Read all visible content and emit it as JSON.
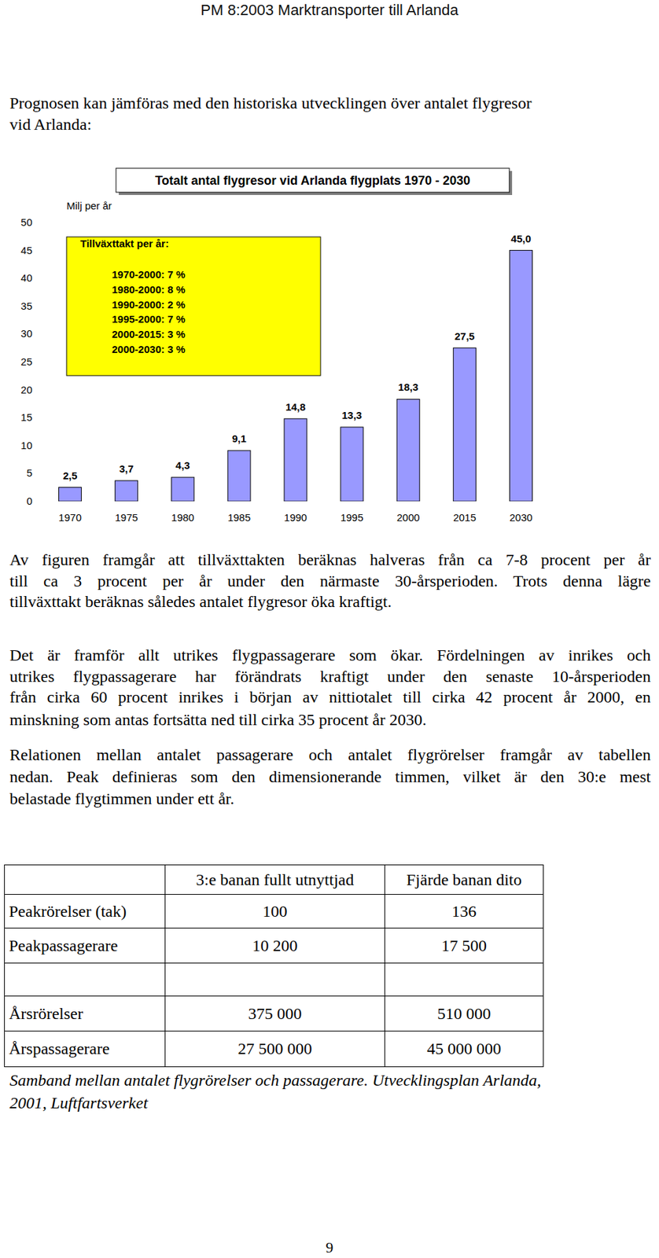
{
  "header": {
    "title": "PM 8:2003 Marktransporter till Arlanda"
  },
  "intro": [
    "Prognosen kan jämföras med den historiska utvecklingen över antalet flygresor",
    "vid Arlanda:"
  ],
  "chart_data": {
    "type": "bar",
    "title": "Totalt antal flygresor vid Arlanda flygplats 1970 - 2030",
    "y_label": "Milj per år",
    "categories": [
      "1970",
      "1975",
      "1980",
      "1985",
      "1990",
      "1995",
      "2000",
      "2015",
      "2030"
    ],
    "values": [
      2.5,
      3.7,
      4.3,
      9.1,
      14.8,
      13.3,
      18.3,
      27.5,
      45.0
    ],
    "value_labels": [
      "2,5",
      "3,7",
      "4,3",
      "9,1",
      "14,8",
      "13,3",
      "18,3",
      "27,5",
      "45,0"
    ],
    "color": "#9999ff",
    "data_labels": true,
    "ylim": [
      0,
      50
    ],
    "yticks": [
      0,
      5,
      10,
      15,
      20,
      25,
      30,
      35,
      40,
      45,
      50
    ],
    "annotation": {
      "title": "Tillväxttakt per år:",
      "lines": [
        "1970-2000: 7 %",
        "1980-2000: 8 %",
        "1990-2000: 2 %",
        "1995-2000: 7 %",
        "2000-2015: 3 %",
        "2000-2030: 3 %"
      ]
    }
  },
  "paragraphs": [
    {
      "lines": [
        "Av figuren framgår att tillväxttakten beräknas halveras från ca 7-8 procent per år",
        "till ca 3 procent per år under den närmaste 30-årsperioden. Trots denna lägre",
        "tillväxttakt beräknas således antalet flygresor öka kraftigt."
      ]
    },
    {
      "lines": [
        "Det är framför allt utrikes flygpassagerare som ökar. Fördelningen av inrikes och",
        "utrikes flygpassagerare har förändrats kraftigt under den senaste 10-årsperioden",
        "från cirka 60 procent inrikes i början av nittiotalet till cirka 42 procent år 2000, en",
        "minskning som antas fortsätta ned till cirka 35 procent år 2030."
      ]
    },
    {
      "lines": [
        "Relationen mellan antalet passagerare och antalet flygrörelser framgår av tabellen",
        "nedan. Peak definieras som den dimensionerande timmen, vilket är den 30:e mest",
        "belastade flygtimmen under ett år."
      ]
    }
  ],
  "table": {
    "header": [
      "3:e banan fullt utnyttjad",
      "Fjärde banan dito"
    ],
    "rows": [
      [
        "Peakrörelser (tak)",
        "100",
        "136"
      ],
      [
        "Peakpassagerare",
        "10 200",
        "17 500"
      ],
      [
        "Årsrörelser",
        "375 000",
        "510 000"
      ],
      [
        "Årspassagerare",
        "27 500 000",
        "45 000 000"
      ]
    ]
  },
  "caption": [
    "Samband mellan antalet flygrörelser och passagerare. Utvecklingsplan Arlanda,",
    "2001, Luftfartsverket"
  ],
  "page_number": "9"
}
